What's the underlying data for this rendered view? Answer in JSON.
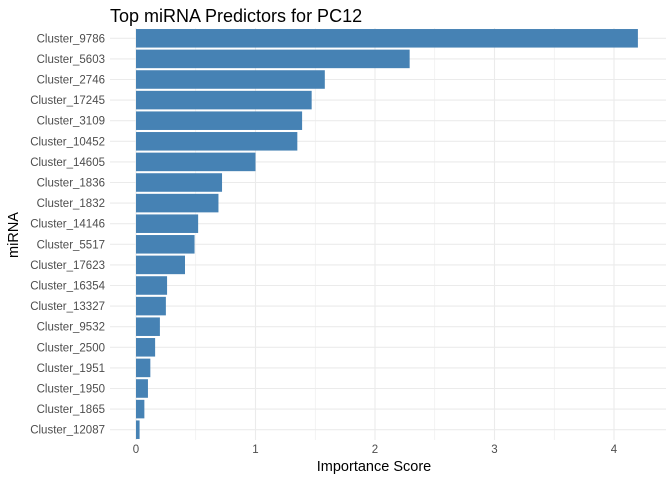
{
  "chart_data": {
    "type": "bar",
    "orientation": "horizontal",
    "title": "Top miRNA Predictors for PC12",
    "xlabel": "Importance Score",
    "ylabel": "miRNA",
    "xlim": [
      0,
      4.2
    ],
    "x_ticks": [
      "0",
      "1",
      "2",
      "3",
      "4"
    ],
    "grid": true,
    "bar_color": "#4682B4",
    "grid_color": "#EBEBEB",
    "categories": [
      "Cluster_9786",
      "Cluster_5603",
      "Cluster_2746",
      "Cluster_17245",
      "Cluster_3109",
      "Cluster_10452",
      "Cluster_14605",
      "Cluster_1836",
      "Cluster_1832",
      "Cluster_14146",
      "Cluster_5517",
      "Cluster_17623",
      "Cluster_16354",
      "Cluster_13327",
      "Cluster_9532",
      "Cluster_2500",
      "Cluster_1951",
      "Cluster_1950",
      "Cluster_1865",
      "Cluster_12087"
    ],
    "values": [
      4.2,
      2.29,
      1.58,
      1.47,
      1.39,
      1.35,
      1.0,
      0.72,
      0.69,
      0.52,
      0.49,
      0.41,
      0.26,
      0.25,
      0.2,
      0.16,
      0.12,
      0.1,
      0.07,
      0.03
    ]
  }
}
